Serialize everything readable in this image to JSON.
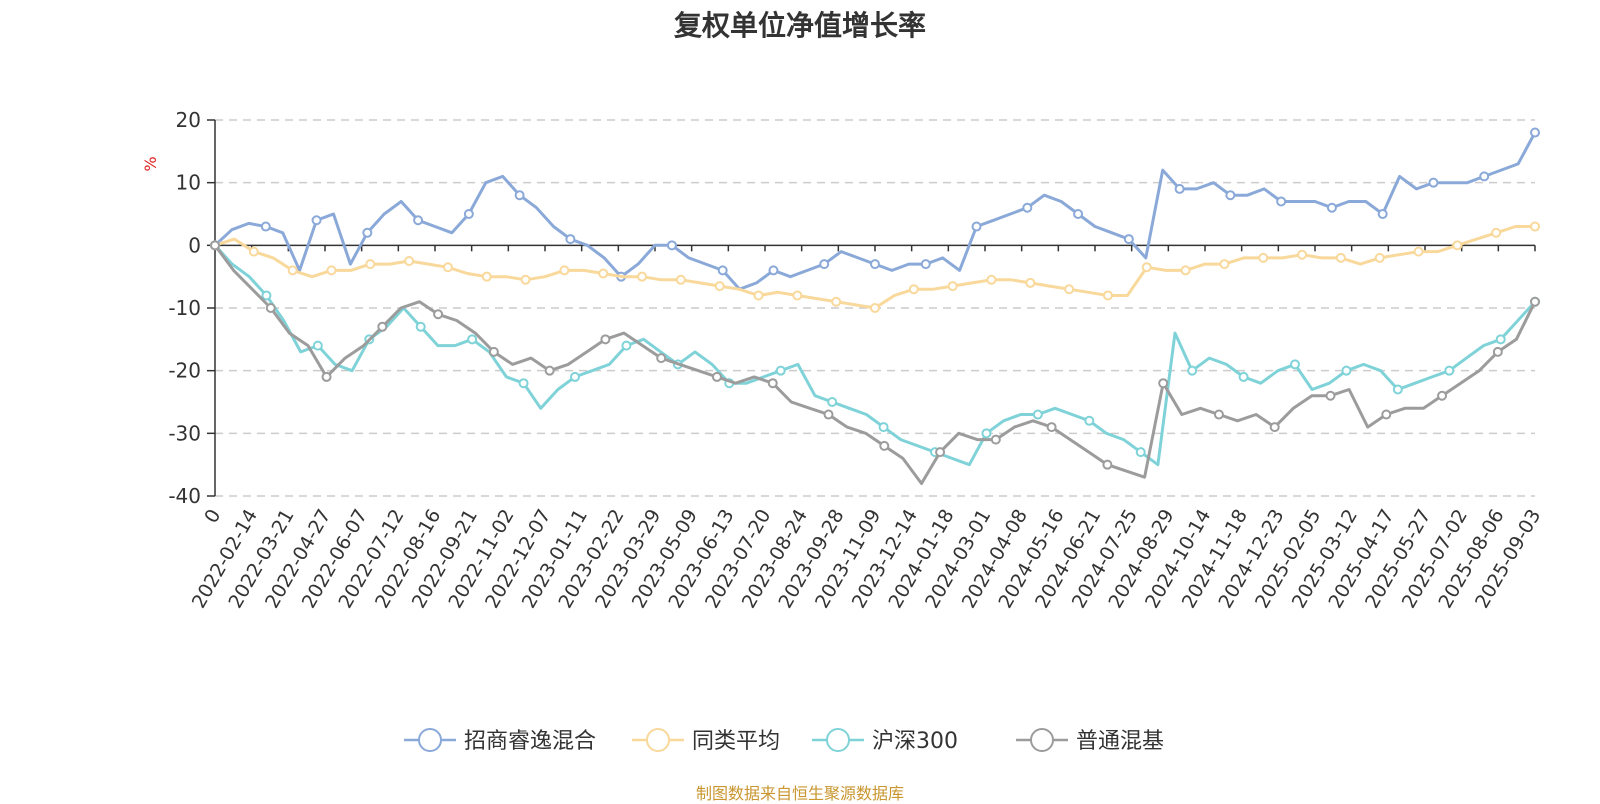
{
  "title": "复权单位净值增长率",
  "source_note": "制图数据来自恒生聚源数据库",
  "chart_data": {
    "type": "line",
    "title": "复权单位净值增长率",
    "ylabel": "%",
    "ylim": [
      -40,
      20
    ],
    "yticks": [
      20,
      10,
      0,
      -10,
      -20,
      -30,
      -40
    ],
    "grid": true,
    "legend_position": "bottom-center",
    "x_tick_labels": [
      "0",
      "2022-02-14",
      "2022-03-21",
      "2022-04-27",
      "2022-06-07",
      "2022-07-12",
      "2022-08-16",
      "2022-09-21",
      "2022-11-02",
      "2022-12-07",
      "2023-01-11",
      "2023-02-22",
      "2023-03-29",
      "2023-05-09",
      "2023-06-13",
      "2023-07-20",
      "2023-08-24",
      "2023-09-28",
      "2023-11-09",
      "2023-12-14",
      "2024-01-18",
      "2024-03-01",
      "2024-04-08",
      "2024-05-16",
      "2024-06-21",
      "2024-07-25",
      "2024-08-29",
      "2024-10-14",
      "2024-11-18",
      "2024-12-23",
      "2025-02-05",
      "2025-03-12",
      "2025-04-17",
      "2025-05-27",
      "2025-07-02",
      "2025-08-06",
      "2025-09-03"
    ],
    "series": [
      {
        "name": "招商睿逸混合",
        "color": "#8aa9d8",
        "values": [
          0,
          2.5,
          3.5,
          3,
          2,
          -4,
          4,
          5,
          -3,
          2,
          5,
          7,
          4,
          3,
          2,
          5,
          10,
          11,
          8,
          6,
          3,
          1,
          0,
          -2,
          -5,
          -3,
          0,
          0,
          -2,
          -3,
          -4,
          -7,
          -6,
          -4,
          -5,
          -4,
          -3,
          -1,
          -2,
          -3,
          -4,
          -3,
          -3,
          -2,
          -4,
          3,
          4,
          5,
          6,
          8,
          7,
          5,
          3,
          2,
          1,
          -2,
          12,
          9,
          9,
          10,
          8,
          8,
          9,
          7,
          7,
          7,
          6,
          7,
          7,
          5,
          11,
          9,
          10,
          10,
          10,
          11,
          12,
          13,
          18
        ]
      },
      {
        "name": "同类平均",
        "color": "#f9d89b",
        "values": [
          0,
          1,
          -1,
          -2,
          -4,
          -5,
          -4,
          -4,
          -3,
          -3,
          -2.5,
          -3,
          -3.5,
          -4.5,
          -5,
          -5,
          -5.5,
          -5,
          -4,
          -4,
          -4.5,
          -5,
          -5,
          -5.5,
          -5.5,
          -6,
          -6.5,
          -7,
          -8,
          -7.5,
          -8,
          -8.5,
          -9,
          -9.5,
          -10,
          -8,
          -7,
          -7,
          -6.5,
          -6,
          -5.5,
          -5.5,
          -6,
          -6.5,
          -7,
          -7.5,
          -8,
          -8,
          -3.5,
          -4,
          -4,
          -3,
          -3,
          -2,
          -2,
          -2,
          -1.5,
          -2,
          -2,
          -3,
          -2,
          -1.5,
          -1,
          -1,
          0,
          1,
          2,
          3,
          3
        ]
      },
      {
        "name": "沪深300",
        "color": "#7fd3d8",
        "values": [
          0,
          -3,
          -5,
          -8,
          -12,
          -17,
          -16,
          -19,
          -20,
          -15,
          -13,
          -10,
          -13,
          -16,
          -16,
          -15,
          -17,
          -21,
          -22,
          -26,
          -23,
          -21,
          -20,
          -19,
          -16,
          -15,
          -17,
          -19,
          -17,
          -19,
          -22,
          -22,
          -21,
          -20,
          -19,
          -24,
          -25,
          -26,
          -27,
          -29,
          -31,
          -32,
          -33,
          -34,
          -35,
          -30,
          -28,
          -27,
          -27,
          -26,
          -27,
          -28,
          -30,
          -31,
          -33,
          -35,
          -14,
          -20,
          -18,
          -19,
          -21,
          -22,
          -20,
          -19,
          -23,
          -22,
          -20,
          -19,
          -20,
          -23,
          -22,
          -21,
          -20,
          -18,
          -16,
          -15,
          -12,
          -9
        ]
      },
      {
        "name": "普通混基",
        "color": "#9c9c9c",
        "values": [
          0,
          -4,
          -7,
          -10,
          -14,
          -16,
          -21,
          -18,
          -16,
          -13,
          -10,
          -9,
          -11,
          -12,
          -14,
          -17,
          -19,
          -18,
          -20,
          -19,
          -17,
          -15,
          -14,
          -16,
          -18,
          -19,
          -20,
          -21,
          -22,
          -21,
          -22,
          -25,
          -26,
          -27,
          -29,
          -30,
          -32,
          -34,
          -38,
          -33,
          -30,
          -31,
          -31,
          -29,
          -28,
          -29,
          -31,
          -33,
          -35,
          -36,
          -37,
          -22,
          -27,
          -26,
          -27,
          -28,
          -27,
          -29,
          -26,
          -24,
          -24,
          -23,
          -29,
          -27,
          -26,
          -26,
          -24,
          -22,
          -20,
          -17,
          -15,
          -9
        ]
      }
    ]
  }
}
